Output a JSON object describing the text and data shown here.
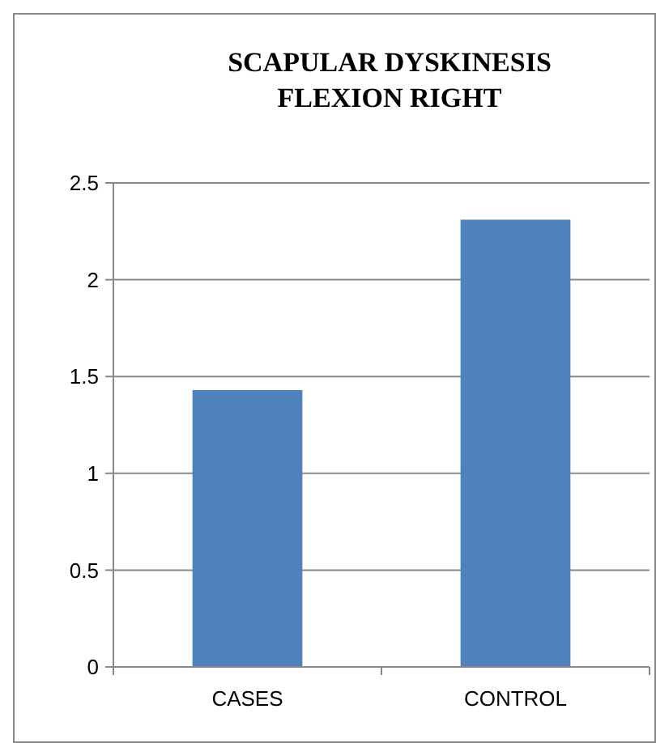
{
  "chart_data": {
    "type": "bar",
    "title": "SCAPULAR DYSKINESIS FLEXION RIGHT",
    "categories": [
      "CASES",
      "CONTROL"
    ],
    "values": [
      1.43,
      2.31
    ],
    "color": "#4f81bd",
    "ylim": [
      0,
      2.5
    ],
    "yticks": [
      0,
      0.5,
      1,
      1.5,
      2,
      2.5
    ],
    "grid": "y"
  }
}
